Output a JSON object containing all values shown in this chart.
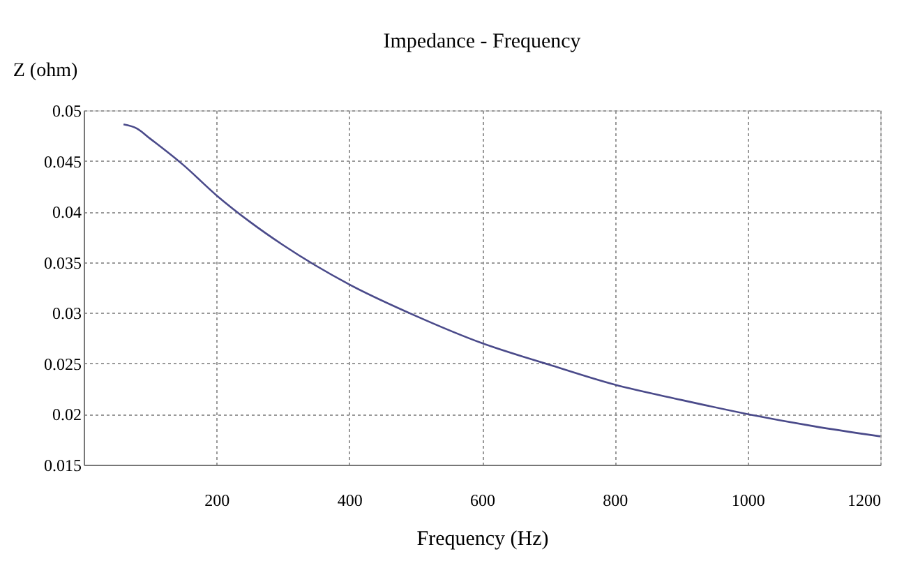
{
  "chart_data": {
    "type": "line",
    "title": "Impedance - Frequency",
    "xlabel": "Frequency (Hz)",
    "ylabel": "Z (ohm)",
    "x": [
      60,
      80,
      100,
      150,
      200,
      250,
      300,
      400,
      500,
      600,
      700,
      800,
      900,
      1000,
      1100,
      1200
    ],
    "series": [
      {
        "color": "#4a4a8a",
        "values": [
          0.0486,
          0.0482,
          0.0472,
          0.0446,
          0.0416,
          0.039,
          0.0367,
          0.0328,
          0.0297,
          0.027,
          0.0249,
          0.0229,
          0.0214,
          0.02,
          0.0188,
          0.0178
        ]
      }
    ],
    "xlim": [
      0,
      1200
    ],
    "ylim": [
      0.015,
      0.05
    ],
    "xticks": [
      200,
      400,
      600,
      800,
      1000,
      1200
    ],
    "yticks": [
      0.015,
      0.02,
      0.025,
      0.03,
      0.035,
      0.04,
      0.045,
      0.05
    ],
    "grid": true,
    "legend": false,
    "marker": "none",
    "line_style": "solid"
  }
}
